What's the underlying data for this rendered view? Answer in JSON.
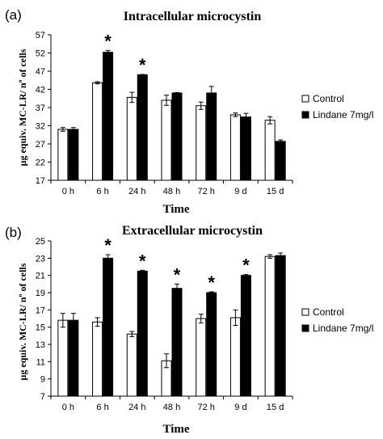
{
  "chart_data": [
    {
      "type": "bar",
      "panel_label": "(a)",
      "title": "Intracellular microcystin",
      "xlabel": "Time",
      "ylabel": "µg equiv. MC-LR/ nº of cells",
      "categories": [
        "0 h",
        "6 h",
        "24 h",
        "48 h",
        "72 h",
        "9 d",
        "15 d"
      ],
      "ylim": [
        17,
        57
      ],
      "yticks": [
        17,
        22,
        27,
        32,
        37,
        42,
        47,
        52,
        57
      ],
      "series": [
        {
          "name": "Control",
          "color": "#ffffff",
          "values": [
            31.0,
            43.8,
            39.8,
            39.0,
            37.5,
            35.0,
            33.5
          ],
          "errors": [
            0.5,
            0.3,
            1.4,
            1.4,
            1.0,
            0.5,
            1.0
          ]
        },
        {
          "name": "Lindane 7mg/l",
          "color": "#000000",
          "values": [
            31.0,
            52.2,
            46.0,
            41.0,
            41.0,
            34.4,
            27.7
          ],
          "errors": [
            0.5,
            0.5,
            0.1,
            0.1,
            1.8,
            1.0,
            0.4
          ]
        }
      ],
      "annotations": [
        {
          "category": "6 h",
          "text": "*"
        },
        {
          "category": "24 h",
          "text": "*"
        }
      ],
      "legend_position": "right",
      "grid": false
    },
    {
      "type": "bar",
      "panel_label": "(b)",
      "title": "Extracellular microcystin",
      "xlabel": "Time",
      "ylabel": "µg equiv. MC-LR/ nº of cells",
      "categories": [
        "0 h",
        "6 h",
        "24 h",
        "48 h",
        "72 h",
        "9 d",
        "15 d"
      ],
      "ylim": [
        7,
        25
      ],
      "yticks": [
        7,
        9,
        11,
        13,
        15,
        17,
        19,
        21,
        23,
        25
      ],
      "series": [
        {
          "name": "Control",
          "color": "#ffffff",
          "values": [
            15.8,
            15.6,
            14.2,
            11.1,
            16.0,
            16.1,
            23.2
          ],
          "errors": [
            0.8,
            0.5,
            0.3,
            0.8,
            0.5,
            0.9,
            0.2
          ]
        },
        {
          "name": "Lindane 7mg/l",
          "color": "#000000",
          "values": [
            15.8,
            23.0,
            21.5,
            19.5,
            19.0,
            21.0,
            23.3
          ],
          "errors": [
            0.8,
            0.4,
            0.1,
            0.5,
            0.1,
            0.1,
            0.3
          ]
        }
      ],
      "annotations": [
        {
          "category": "6 h",
          "text": "*"
        },
        {
          "category": "24 h",
          "text": "*"
        },
        {
          "category": "48 h",
          "text": "*"
        },
        {
          "category": "72 h",
          "text": "*"
        },
        {
          "category": "9 d",
          "text": "*"
        }
      ],
      "legend_position": "right",
      "grid": false
    }
  ]
}
